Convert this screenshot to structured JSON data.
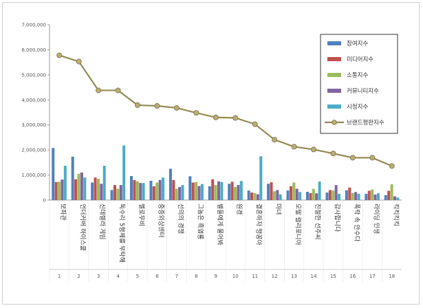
{
  "chart_data": {
    "type": "bar",
    "categories": [
      "보좌관",
      "언더커버 하이스쿨",
      "신데렐라 게임",
      "독수리 5형제를 부탁해",
      "멜로무비",
      "중증외상센터",
      "선의의 경쟁",
      "그놈은 흑염룡",
      "별들에게 물어봐",
      "원경",
      "결혼하자 맹꽁아",
      "마녀",
      "모텔 캘리포니아",
      "친절한 선주씨",
      "감사합니다",
      "폭락 속 안수다",
      "라이딩 인생",
      "킥킥킥킥"
    ],
    "indices": [
      "1",
      "2",
      "3",
      "4",
      "5",
      "6",
      "7",
      "8",
      "9",
      "10",
      "11",
      "12",
      "13",
      "14",
      "15",
      "16",
      "17",
      "18"
    ],
    "series": [
      {
        "name": "참여지수",
        "color": "#4f81bd",
        "values": [
          2080000,
          1730000,
          700000,
          400000,
          960000,
          770000,
          1250000,
          950000,
          550000,
          650000,
          380000,
          650000,
          380000,
          330000,
          300000,
          390000,
          250000,
          200000
        ]
      },
      {
        "name": "미디어지수",
        "color": "#c0504d",
        "values": [
          720000,
          830000,
          900000,
          600000,
          800000,
          550000,
          800000,
          700000,
          830000,
          730000,
          300000,
          710000,
          550000,
          280000,
          400000,
          500000,
          370000,
          370000
        ]
      },
      {
        "name": "소통지수",
        "color": "#9bbb59",
        "values": [
          730000,
          1050000,
          850000,
          450000,
          750000,
          700000,
          450000,
          720000,
          600000,
          520000,
          280000,
          350000,
          700000,
          450000,
          380000,
          280000,
          420000,
          630000
        ]
      },
      {
        "name": "커뮤니티지수",
        "color": "#8064a2",
        "values": [
          820000,
          1100000,
          650000,
          600000,
          680000,
          800000,
          520000,
          560000,
          750000,
          600000,
          230000,
          400000,
          450000,
          270000,
          600000,
          320000,
          220000,
          150000
        ]
      },
      {
        "name": "시청지수",
        "color": "#4bacc6",
        "values": [
          1370000,
          900000,
          1370000,
          2180000,
          680000,
          900000,
          600000,
          640000,
          720000,
          760000,
          1750000,
          230000,
          320000,
          740000,
          250000,
          250000,
          270000,
          100000
        ]
      }
    ],
    "line": {
      "name": "브랜드평판지수",
      "color": "#938953",
      "values": [
        5780000,
        5530000,
        4380000,
        4380000,
        3790000,
        3760000,
        3680000,
        3480000,
        3300000,
        3280000,
        3030000,
        2410000,
        2130000,
        2020000,
        1860000,
        1690000,
        1690000,
        1360000
      ]
    },
    "ylim": [
      0,
      7000000
    ],
    "yticks": [
      "0",
      "1,000,000",
      "2,000,000",
      "3,000,000",
      "4,000,000",
      "5,000,000",
      "6,000,000",
      "7,000,000"
    ],
    "legend_position": "right",
    "grid": false
  }
}
